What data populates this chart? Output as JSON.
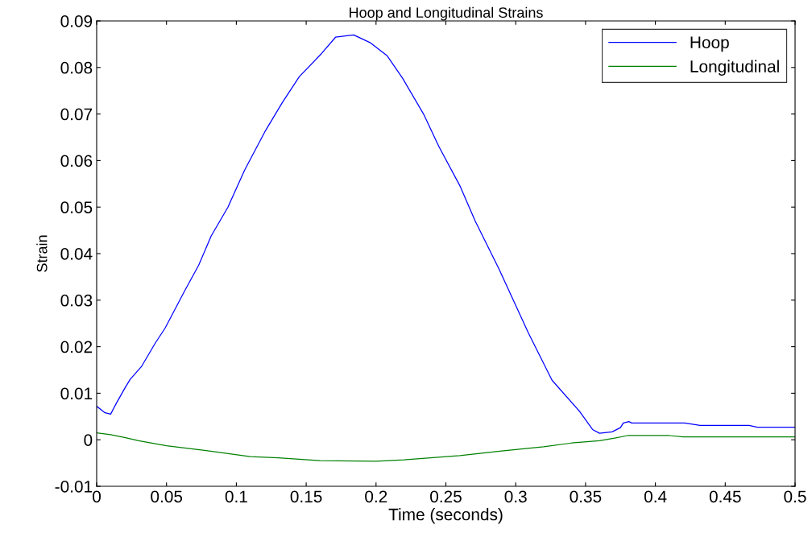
{
  "chart_data": {
    "type": "line",
    "title": "Hoop and Longitudinal Strains",
    "xlabel": "Time (seconds)",
    "ylabel": "Strain",
    "xlim": [
      0,
      0.5
    ],
    "xticks": [
      0,
      0.05,
      0.1,
      0.15,
      0.2,
      0.25,
      0.3,
      0.35,
      0.4,
      0.45,
      0.5
    ],
    "ylim": [
      -0.01,
      0.09
    ],
    "yticks": [
      -0.01,
      0,
      0.01,
      0.02,
      0.03,
      0.04,
      0.05,
      0.06,
      0.07,
      0.08,
      0.09
    ],
    "grid": false,
    "legend": "top right",
    "marker": "none",
    "line_style": "solid",
    "series": [
      {
        "name": "Hoop",
        "color": "#0000ff",
        "x": [
          0,
          0.006,
          0.01,
          0.014,
          0.02,
          0.024,
          0.032,
          0.042,
          0.049,
          0.063,
          0.073,
          0.082,
          0.094,
          0.106,
          0.121,
          0.133,
          0.145,
          0.161,
          0.171,
          0.184,
          0.196,
          0.208,
          0.219,
          0.234,
          0.245,
          0.26,
          0.271,
          0.288,
          0.309,
          0.326,
          0.346,
          0.355,
          0.36,
          0.369,
          0.375,
          0.377,
          0.381,
          0.383,
          0.421,
          0.432,
          0.467,
          0.473,
          0.5
        ],
        "values": [
          0.0072,
          0.0058,
          0.0055,
          0.0078,
          0.011,
          0.013,
          0.0157,
          0.0208,
          0.024,
          0.032,
          0.0375,
          0.0438,
          0.05,
          0.058,
          0.0665,
          0.0725,
          0.078,
          0.083,
          0.0865,
          0.087,
          0.0853,
          0.0825,
          0.0777,
          0.07,
          0.063,
          0.0546,
          0.047,
          0.0367,
          0.023,
          0.0128,
          0.006,
          0.0022,
          0.0014,
          0.0017,
          0.0026,
          0.0036,
          0.0039,
          0.0036,
          0.0036,
          0.0031,
          0.0031,
          0.0027,
          0.0027
        ]
      },
      {
        "name": "Longitudinal",
        "color": "#008000",
        "x": [
          0,
          0.01,
          0.02,
          0.03,
          0.05,
          0.07,
          0.09,
          0.11,
          0.13,
          0.16,
          0.2,
          0.22,
          0.26,
          0.29,
          0.32,
          0.34,
          0.36,
          0.37,
          0.38,
          0.41,
          0.42,
          0.5
        ],
        "values": [
          0.0015,
          0.0011,
          0.0005,
          -0.0002,
          -0.0013,
          -0.002,
          -0.0028,
          -0.0036,
          -0.0039,
          -0.0045,
          -0.0046,
          -0.0043,
          -0.0034,
          -0.0024,
          -0.0015,
          -0.0007,
          -0.0002,
          0.0003,
          0.0009,
          0.0009,
          0.0006,
          0.0006
        ]
      }
    ]
  }
}
